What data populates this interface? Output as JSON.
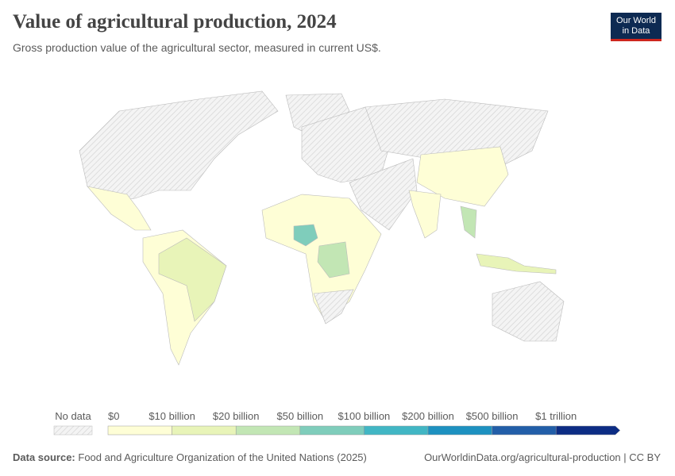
{
  "header": {
    "title": "Value of agricultural production, 2024",
    "subtitle": "Gross production value of the agricultural sector, measured in current US$."
  },
  "logo": [
    "Our World",
    "in Data"
  ],
  "legend": {
    "no_data": "No data",
    "labels": [
      "$0",
      "$10 billion",
      "$20 billion",
      "$50 billion",
      "$100 billion",
      "$200 billion",
      "$500 billion",
      "$1 trillion"
    ],
    "colors": [
      "#fefed6",
      "#e8f4b8",
      "#c2e6b4",
      "#7fcdbb",
      "#41b6c4",
      "#1d91c0",
      "#225ea8",
      "#0c2c84"
    ]
  },
  "footer": {
    "source_label": "Data source:",
    "source": "Food and Agriculture Organization of the United Nations (2025)",
    "url": "OurWorldinData.org/agricultural-production | CC BY"
  }
}
